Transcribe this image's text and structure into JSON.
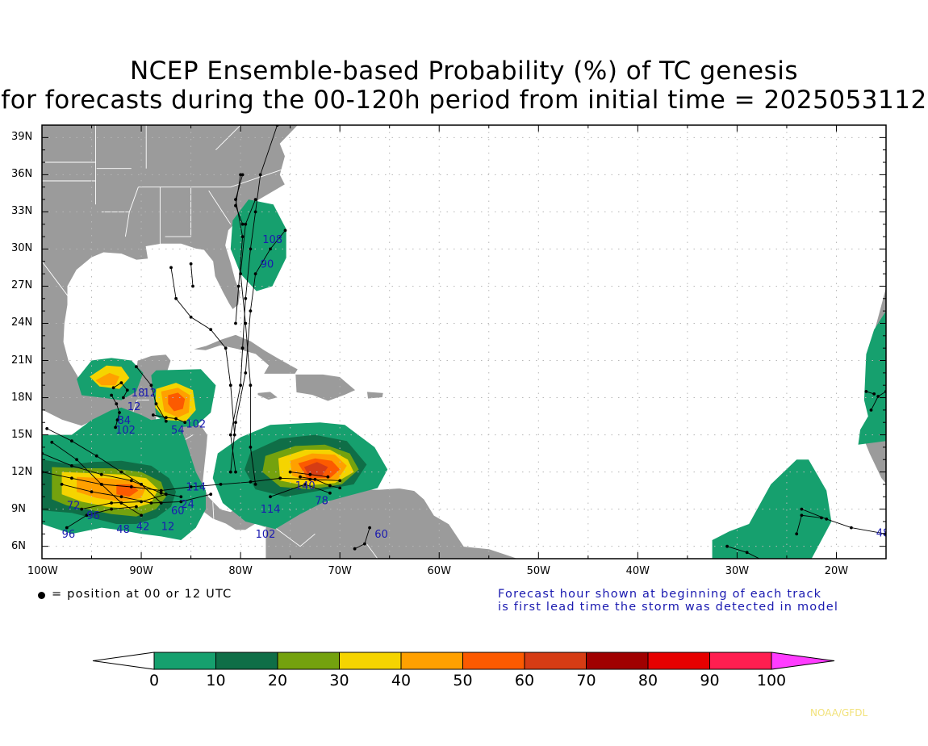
{
  "title": {
    "line1": "NCEP Ensemble-based Probability (%) of TC genesis",
    "line2": "for forecasts during the 00-120h period from initial time = 2025053112"
  },
  "map": {
    "lat_labels": [
      "39N",
      "36N",
      "33N",
      "30N",
      "27N",
      "24N",
      "21N",
      "18N",
      "15N",
      "12N",
      "9N",
      "6N"
    ],
    "lon_labels": [
      "100W",
      "90W",
      "80W",
      "70W",
      "60W",
      "50W",
      "40W",
      "30W",
      "20W"
    ],
    "extent": {
      "lon_min": -100,
      "lon_max": -15,
      "lat_min": 5,
      "lat_max": 40
    },
    "land_color": "#9b9b9b",
    "storm_labels": [
      {
        "text": "108",
        "lon": -77.8,
        "lat": 30.5
      },
      {
        "text": "90",
        "lon": -78.0,
        "lat": 28.5
      },
      {
        "text": "18",
        "lon": -91.0,
        "lat": 18.1
      },
      {
        "text": "12",
        "lon": -89.8,
        "lat": 18.1
      },
      {
        "text": "12",
        "lon": -91.4,
        "lat": 17.0
      },
      {
        "text": "102",
        "lon": -85.5,
        "lat": 15.6
      },
      {
        "text": "54",
        "lon": -87.0,
        "lat": 15.1
      },
      {
        "text": "102",
        "lon": -92.6,
        "lat": 15.1
      },
      {
        "text": "84",
        "lon": -92.4,
        "lat": 15.9
      },
      {
        "text": "114",
        "lon": -78.0,
        "lat": 8.7
      },
      {
        "text": "102",
        "lon": -78.5,
        "lat": 6.7
      },
      {
        "text": "78",
        "lon": -72.5,
        "lat": 9.4
      },
      {
        "text": "140",
        "lon": -74.5,
        "lat": 10.6
      },
      {
        "text": "60",
        "lon": -66.5,
        "lat": 6.7
      },
      {
        "text": "48",
        "lon": -16.0,
        "lat": 6.8
      },
      {
        "text": "96",
        "lon": -95.5,
        "lat": 8.2
      },
      {
        "text": "48",
        "lon": -92.5,
        "lat": 7.1
      },
      {
        "text": "42",
        "lon": -90.5,
        "lat": 7.3
      },
      {
        "text": "12",
        "lon": -88.0,
        "lat": 7.3
      },
      {
        "text": "60",
        "lon": -87.0,
        "lat": 8.6
      },
      {
        "text": "114",
        "lon": -85.5,
        "lat": 10.5
      },
      {
        "text": "24",
        "lon": -86.0,
        "lat": 9.1
      },
      {
        "text": "96",
        "lon": -98.0,
        "lat": 6.7
      },
      {
        "text": "72",
        "lon": -97.5,
        "lat": 9.0
      }
    ]
  },
  "legend": {
    "position_note": "= position at 00 or 12 UTC",
    "forecast_note_line1": "Forecast hour shown at beginning of each track",
    "forecast_note_line2": "is first lead time the storm was detected in model"
  },
  "colorbar": {
    "ticks": [
      "0",
      "10",
      "20",
      "30",
      "40",
      "50",
      "60",
      "70",
      "80",
      "90",
      "100"
    ],
    "colors": [
      "#16a06e",
      "#0f6e47",
      "#74a20e",
      "#f5d400",
      "#ffa000",
      "#fc5a00",
      "#d63c14",
      "#a00000",
      "#e60000",
      "#ff1e50"
    ],
    "under_color": "#ffffff",
    "over_color": "#ff3cff"
  },
  "credit": "NOAA/GFDL"
}
